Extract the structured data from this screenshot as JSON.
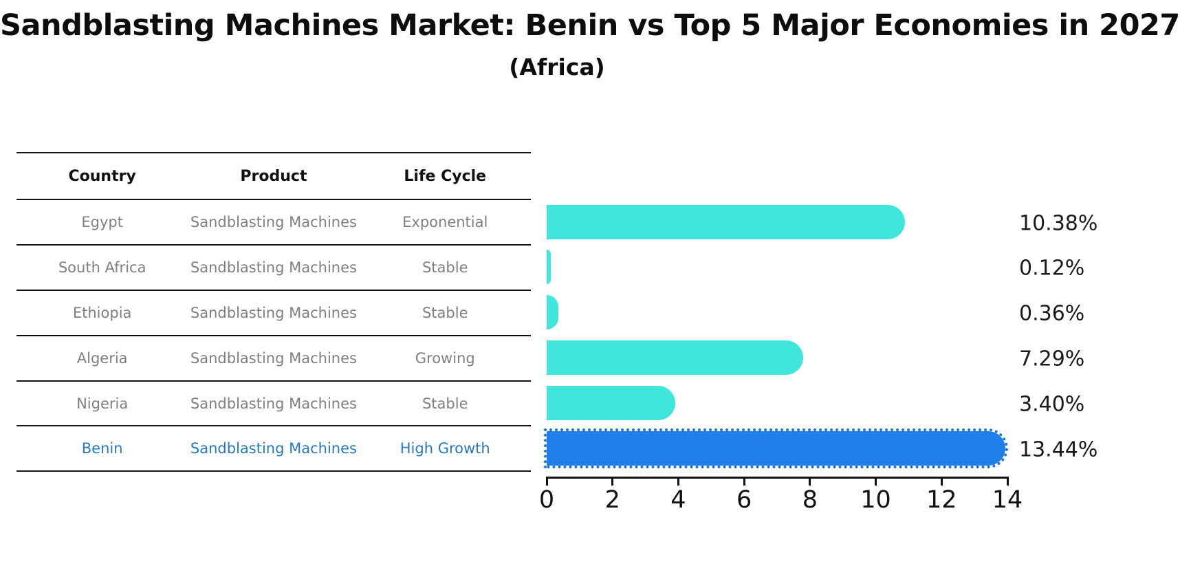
{
  "title": "Sandblasting Machines Market: Benin vs Top 5 Major Economies in 2027",
  "subtitle": "(Africa)",
  "table": {
    "headers": [
      "Country",
      "Product",
      "Life Cycle"
    ],
    "rows": [
      {
        "country": "Egypt",
        "product": "Sandblasting Machines",
        "life_cycle": "Exponential",
        "highlight": false
      },
      {
        "country": "South Africa",
        "product": "Sandblasting Machines",
        "life_cycle": "Stable",
        "highlight": false
      },
      {
        "country": "Ethiopia",
        "product": "Sandblasting Machines",
        "life_cycle": "Stable",
        "highlight": false
      },
      {
        "country": "Algeria",
        "product": "Sandblasting Machines",
        "life_cycle": "Growing",
        "highlight": false
      },
      {
        "country": "Nigeria",
        "product": "Sandblasting Machines",
        "life_cycle": "Stable",
        "highlight": false
      },
      {
        "country": "Benin",
        "product": "Sandblasting Machines",
        "life_cycle": "High Growth",
        "highlight": true
      }
    ]
  },
  "chart_data": {
    "type": "bar",
    "orientation": "horizontal",
    "title": "Sandblasting Machines Market: Benin vs Top 5 Major Economies in 2027",
    "subtitle": "(Africa)",
    "categories": [
      "Egypt",
      "South Africa",
      "Ethiopia",
      "Algeria",
      "Nigeria",
      "Benin"
    ],
    "values": [
      10.38,
      0.12,
      0.36,
      7.29,
      3.4,
      13.44
    ],
    "value_labels": [
      "10.38%",
      "0.12%",
      "0.36%",
      "7.29%",
      "3.40%",
      "13.44%"
    ],
    "xlabel": "",
    "ylabel": "",
    "xlim": [
      0,
      14
    ],
    "x_ticks": [
      0,
      2,
      4,
      6,
      8,
      10,
      12,
      14
    ],
    "grid": false,
    "legend": false,
    "highlight_category": "Benin"
  },
  "colors": {
    "bar": "#40e5dc",
    "highlight_bar": "#1e7fe8",
    "highlight_bar_dots": "#1b74de",
    "highlight_text": "#2878be",
    "table_text": "#7f7f7f",
    "axis": "#111111"
  }
}
